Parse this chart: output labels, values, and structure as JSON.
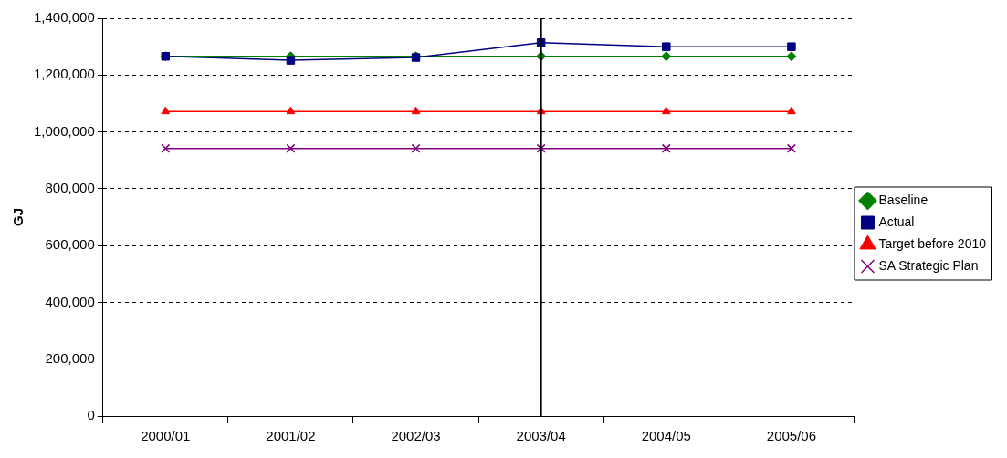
{
  "chart_data": {
    "type": "line",
    "ylabel": "GJ",
    "categories": [
      "2000/01",
      "2001/02",
      "2002/03",
      "2003/04",
      "2004/05",
      "2005/06"
    ],
    "series": [
      {
        "name": "Baseline",
        "color": "#008000",
        "marker": "diamond",
        "values": [
          1266000,
          1266000,
          1266000,
          1266000,
          1266000,
          1266000
        ]
      },
      {
        "name": "Actual",
        "color": "#000080",
        "marker": "square",
        "values": [
          1266000,
          1252000,
          1262000,
          1314000,
          1300000,
          1300000
        ]
      },
      {
        "name": "Target before 2010",
        "color": "#ff0000",
        "marker": "triangle",
        "values": [
          1072000,
          1072000,
          1072000,
          1072000,
          1072000,
          1072000
        ]
      },
      {
        "name": "SA Strategic Plan",
        "color": "#800080",
        "marker": "cross",
        "values": [
          942000,
          942000,
          942000,
          942000,
          942000,
          942000
        ]
      }
    ],
    "ylim": [
      0,
      1400000
    ],
    "yticks": [
      0,
      {
        "value": 200000,
        "label": "200,000"
      },
      {
        "value": 400000,
        "label": "400,000"
      },
      {
        "value": 600000,
        "label": "600,000"
      },
      {
        "value": 800000,
        "label": "800,000"
      },
      {
        "value": 1000000,
        "label": "1,000,000"
      },
      {
        "value": 1200000,
        "label": "1,200,000"
      },
      {
        "value": 1400000,
        "label": "1,400,000"
      }
    ],
    "grid": "y",
    "legend": "right",
    "ref_lines": [
      {
        "axis": "x",
        "value": "2003/04",
        "color": "#000000"
      }
    ]
  }
}
